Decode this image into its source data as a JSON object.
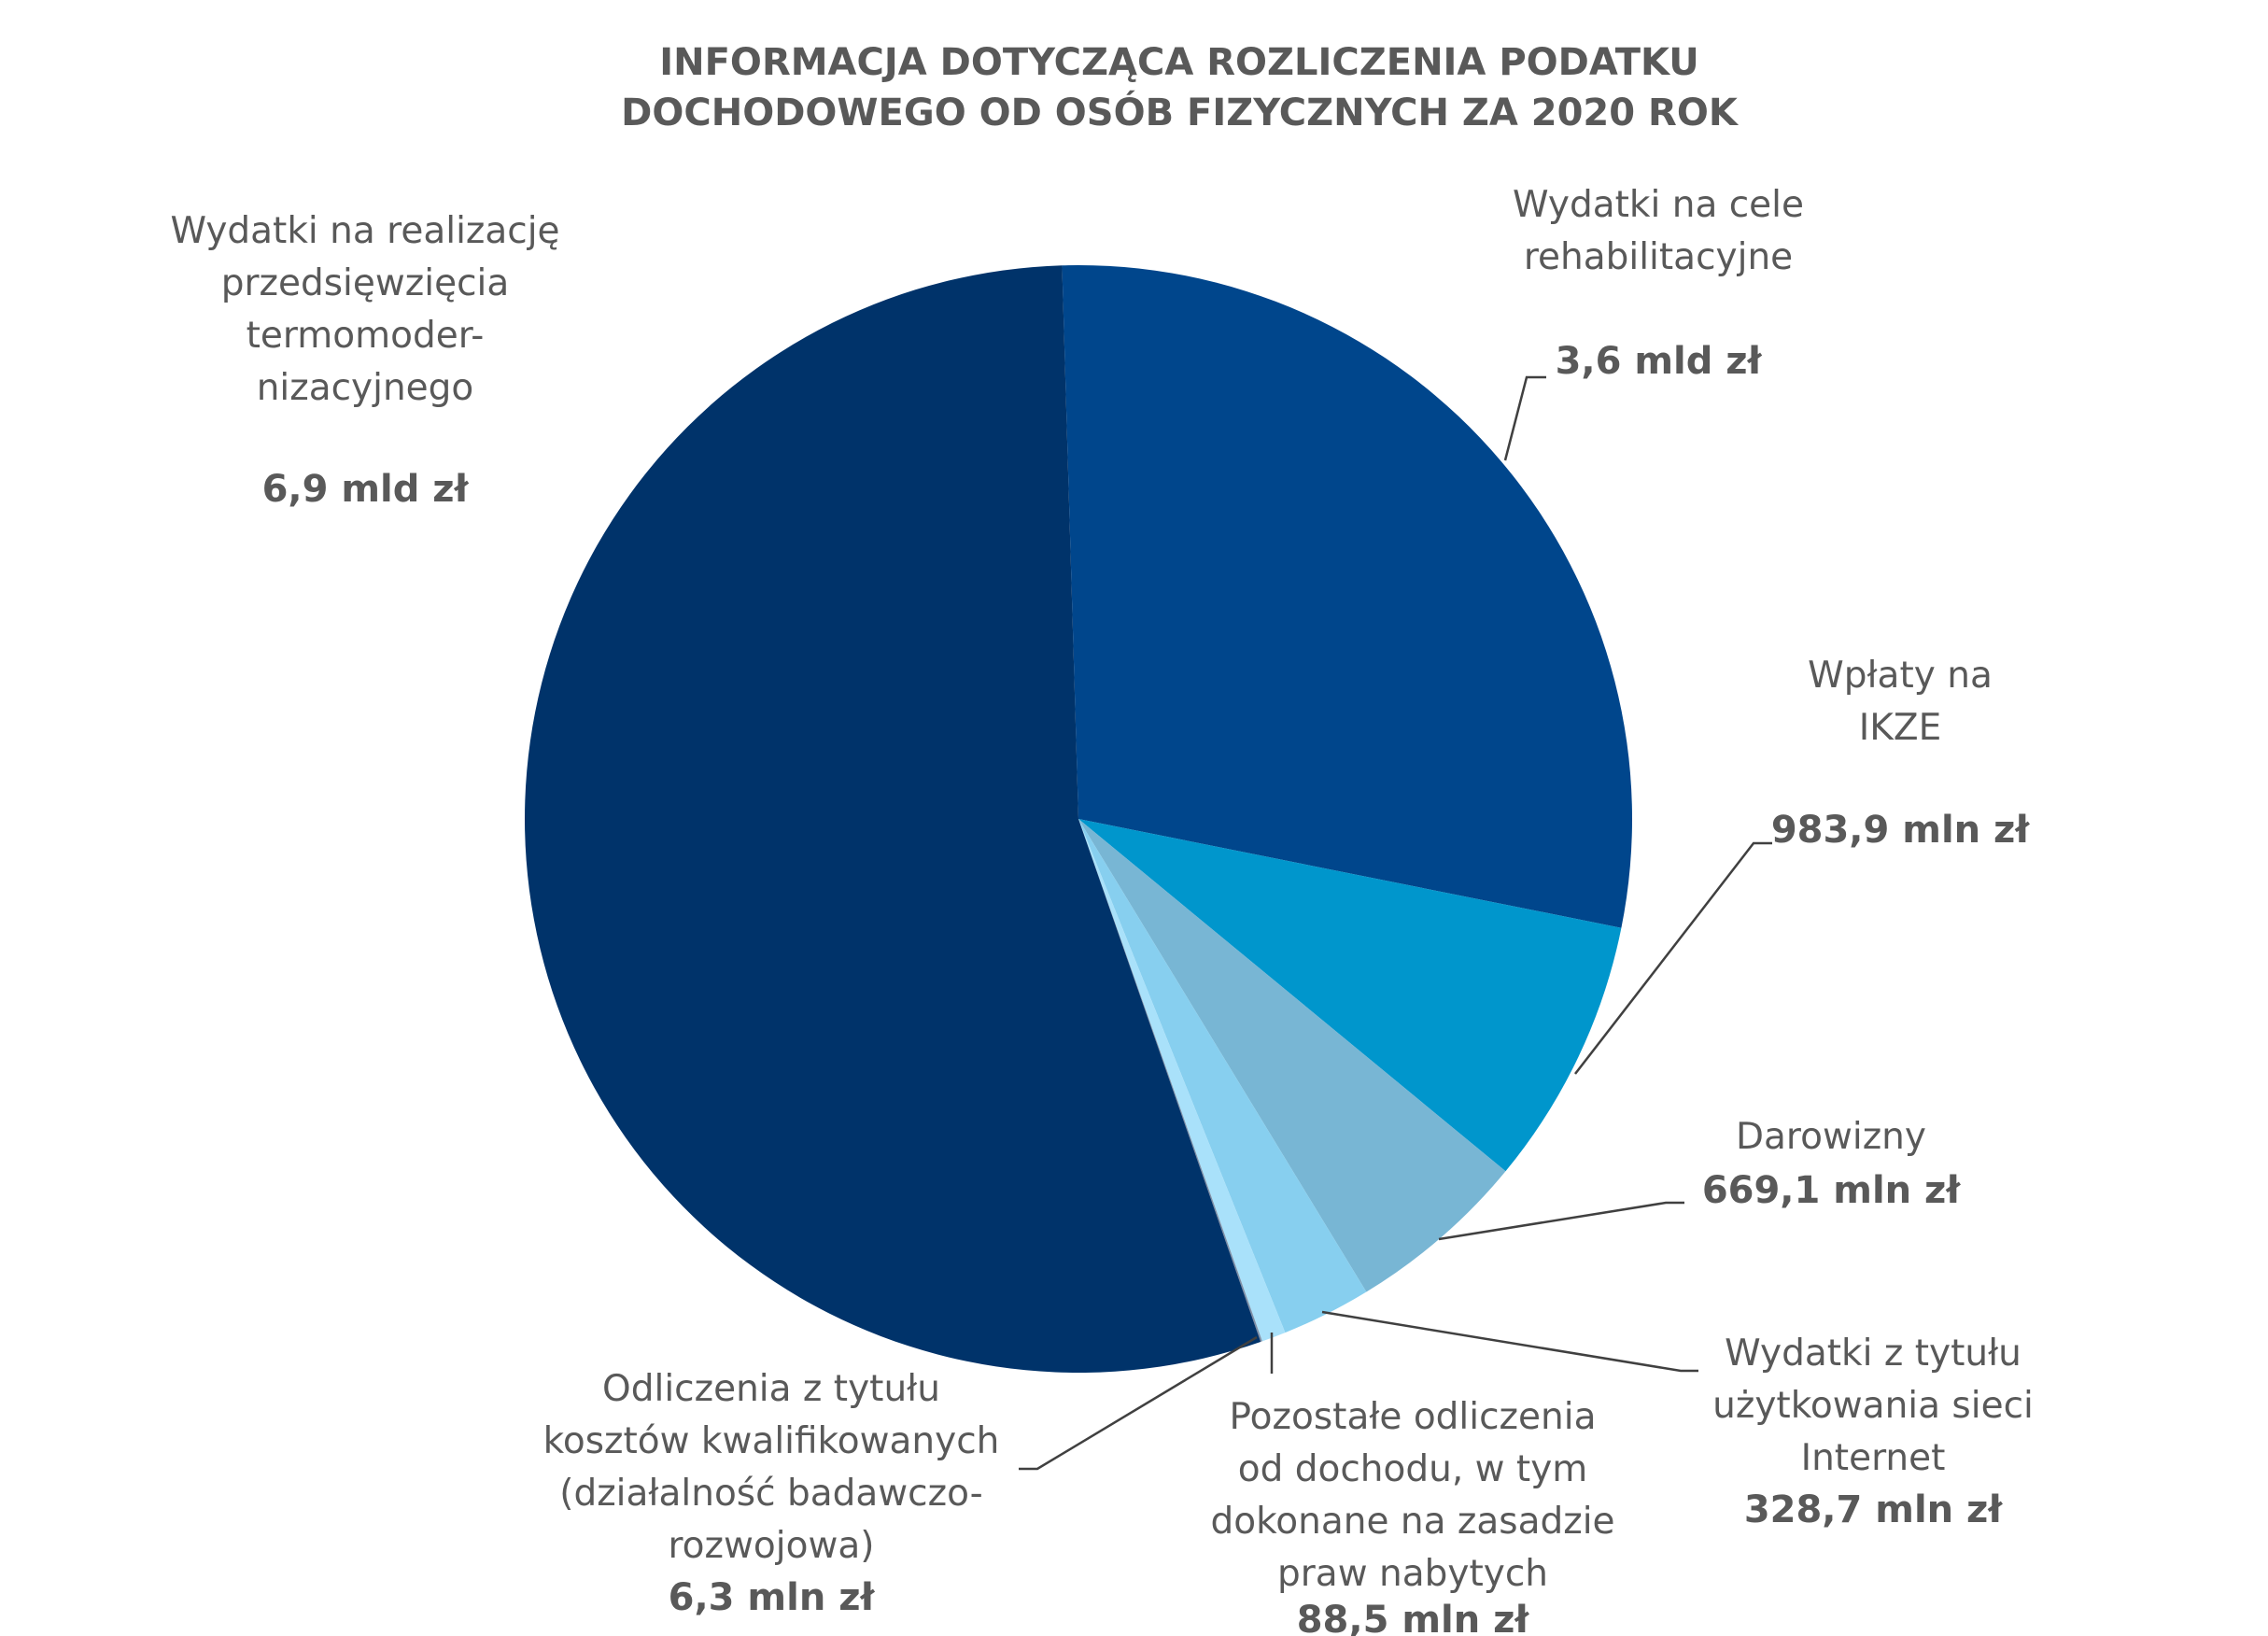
{
  "chart_data": {
    "type": "pie",
    "title": [
      "INFORMACJA DOTYCZĄCA ROZLICZENIA PODATKU",
      "DOCHODOWEGO OD OSÓB FIZYCZNYCH ZA 2020 ROK"
    ],
    "unit": "mln zł",
    "slices": [
      {
        "label": [
          "Wydatki na cele",
          "rehabilitacyjne"
        ],
        "value": 3600,
        "value_label": "3,6 mld zł",
        "color": "#00468C"
      },
      {
        "label": [
          "Wpłaty na",
          "IKZE"
        ],
        "value": 983.9,
        "value_label": "983,9 mln zł",
        "color": "#0096CC"
      },
      {
        "label": [
          "Darowizny"
        ],
        "value": 669.1,
        "value_label": "669,1 mln zł",
        "color": "#78B6D4"
      },
      {
        "label": [
          "Wydatki z tytułu",
          "użytkowania sieci",
          "Internet"
        ],
        "value": 328.7,
        "value_label": "328,7 mln zł",
        "color": "#87CFEF"
      },
      {
        "label": [
          "Pozostałe odliczenia",
          "od dochodu, w tym",
          "dokonane na zasadzie",
          "praw nabytych"
        ],
        "value": 88.5,
        "value_label": "88,5 mln zł",
        "color": "#A9E1FA"
      },
      {
        "label": [
          "Odliczenia z tytułu",
          "kosztów kwalifikowanych",
          "(działalność badawczo-",
          "rozwojowa)"
        ],
        "value": 6.3,
        "value_label": "6,3 mln zł",
        "color": "#7F8FA6"
      },
      {
        "label": [
          "Wydatki na realizację",
          "przedsięwzięcia",
          "termomoder-",
          "nizacyjnego"
        ],
        "value": 6900,
        "value_label": "6,9 mld zł",
        "color": "#00336A"
      }
    ]
  }
}
